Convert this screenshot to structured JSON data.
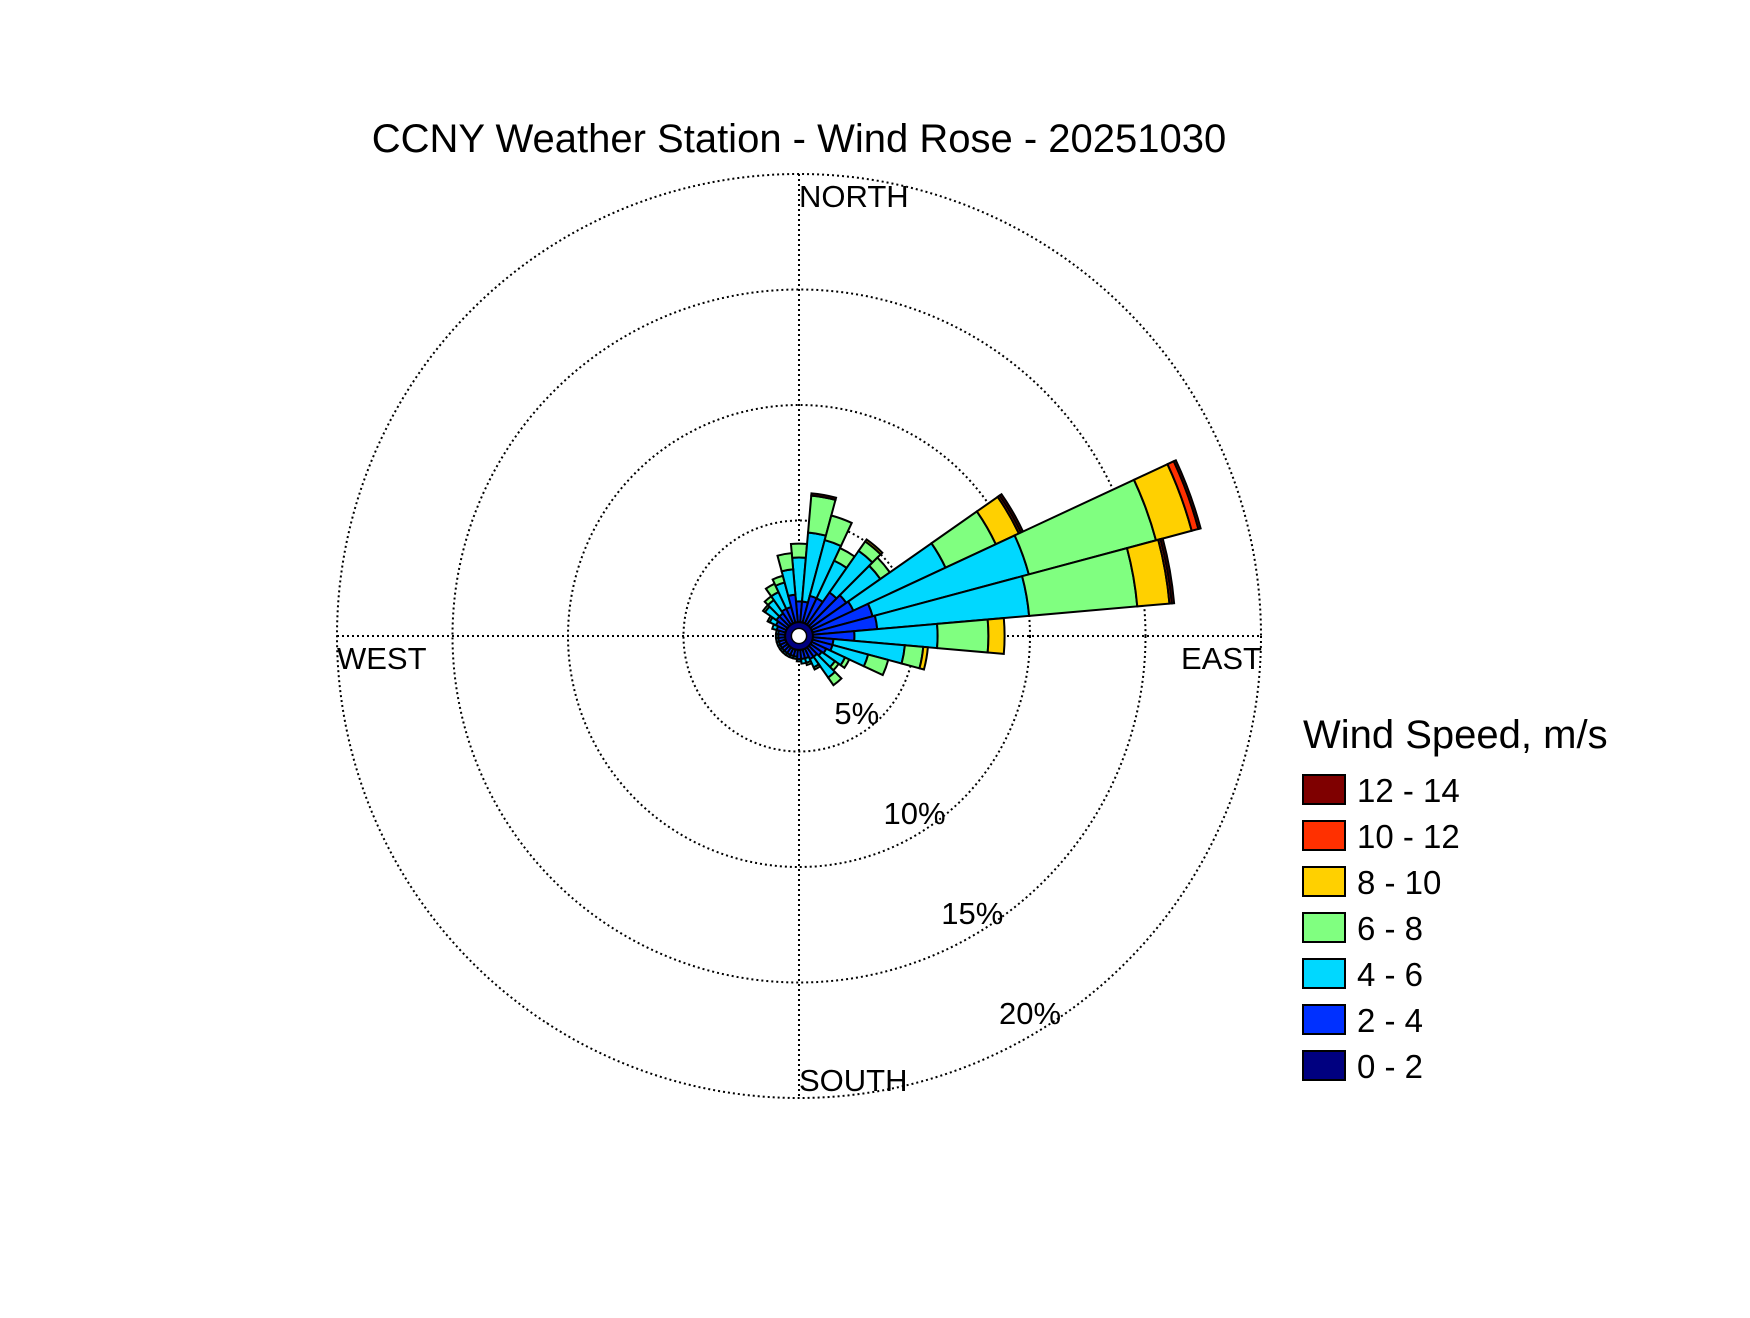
{
  "chart_data": {
    "type": "windrose",
    "title": "CCNY Weather Station - Wind Rose - 20251030",
    "directions": {
      "north": "NORTH",
      "east": "EAST",
      "south": "SOUTH",
      "west": "WEST"
    },
    "radial_axis": {
      "max": 20,
      "ticks": [
        5,
        10,
        15,
        20
      ],
      "tick_labels": [
        "5%",
        "10%",
        "15%",
        "20%"
      ],
      "label_angle_deg": 150
    },
    "grid": true,
    "legend": {
      "title": "Wind Speed, m/s",
      "position": "right",
      "entries": [
        {
          "label": "12 - 14",
          "color": "#7f0000"
        },
        {
          "label": "10 - 12",
          "color": "#ff3000"
        },
        {
          "label": "8 - 10",
          "color": "#ffd000"
        },
        {
          "label": "6 - 8",
          "color": "#80ff80"
        },
        {
          "label": "4 - 6",
          "color": "#00d8ff"
        },
        {
          "label": "2 - 4",
          "color": "#0030ff"
        },
        {
          "label": "0 - 2",
          "color": "#000080"
        }
      ]
    },
    "bins": [
      "0 - 2",
      "2 - 4",
      "4 - 6",
      "6 - 8",
      "8 - 10",
      "10 - 12",
      "12 - 14"
    ],
    "center_calm_radius": 0.6,
    "sector_width_deg": 10,
    "sectors": [
      {
        "direction_deg": 0,
        "cumulative": [
          0.6,
          1.5,
          3.4,
          4.0,
          4.0,
          4.0,
          4.0
        ]
      },
      {
        "direction_deg": 10,
        "cumulative": [
          0.6,
          1.5,
          4.5,
          6.1,
          6.1,
          6.1,
          6.2
        ]
      },
      {
        "direction_deg": 20,
        "cumulative": [
          0.6,
          1.8,
          4.3,
          5.4,
          5.4,
          5.4,
          5.4
        ]
      },
      {
        "direction_deg": 30,
        "cumulative": [
          0.6,
          1.8,
          3.6,
          4.2,
          4.2,
          4.2,
          4.2
        ]
      },
      {
        "direction_deg": 40,
        "cumulative": [
          0.6,
          2.3,
          4.5,
          5.0,
          5.1,
          5.1,
          5.1
        ]
      },
      {
        "direction_deg": 50,
        "cumulative": [
          0.6,
          2.5,
          4.3,
          4.8,
          4.8,
          4.8,
          4.8
        ]
      },
      {
        "direction_deg": 60,
        "cumulative": [
          0.6,
          2.6,
          7.0,
          9.4,
          10.5,
          10.6,
          10.7
        ]
      },
      {
        "direction_deg": 70,
        "cumulative": [
          0.6,
          3.3,
          10.3,
          16.0,
          17.6,
          17.9,
          18.0
        ]
      },
      {
        "direction_deg": 80,
        "cumulative": [
          0.6,
          3.4,
          10.0,
          14.7,
          16.1,
          16.2,
          16.3
        ]
      },
      {
        "direction_deg": 90,
        "cumulative": [
          0.6,
          2.4,
          6.0,
          8.2,
          8.9,
          8.9,
          8.9
        ]
      },
      {
        "direction_deg": 100,
        "cumulative": [
          0.6,
          1.5,
          4.6,
          5.4,
          5.6,
          5.6,
          5.6
        ]
      },
      {
        "direction_deg": 110,
        "cumulative": [
          0.6,
          1.5,
          3.1,
          4.0,
          4.0,
          4.0,
          4.0
        ]
      },
      {
        "direction_deg": 120,
        "cumulative": [
          0.6,
          1.3,
          2.2,
          2.4,
          2.4,
          2.4,
          2.4
        ]
      },
      {
        "direction_deg": 130,
        "cumulative": [
          0.6,
          1.2,
          1.9,
          2.1,
          2.1,
          2.1,
          2.1
        ]
      },
      {
        "direction_deg": 140,
        "cumulative": [
          0.6,
          1.1,
          2.2,
          2.6,
          2.6,
          2.6,
          2.6
        ]
      },
      {
        "direction_deg": 150,
        "cumulative": [
          0.6,
          1.1,
          1.5,
          1.6,
          1.6,
          1.6,
          1.6
        ]
      },
      {
        "direction_deg": 160,
        "cumulative": [
          0.6,
          1.0,
          1.2,
          1.3,
          1.3,
          1.3,
          1.3
        ]
      },
      {
        "direction_deg": 170,
        "cumulative": [
          0.6,
          1.0,
          1.2,
          1.2,
          1.2,
          1.2,
          1.2
        ]
      },
      {
        "direction_deg": 180,
        "cumulative": [
          0.6,
          1.0,
          1.1,
          1.1,
          1.1,
          1.1,
          1.1
        ]
      },
      {
        "direction_deg": 190,
        "cumulative": [
          0.6,
          0.9,
          1.0,
          1.0,
          1.0,
          1.0,
          1.0
        ]
      },
      {
        "direction_deg": 200,
        "cumulative": [
          0.6,
          0.9,
          1.0,
          1.0,
          1.0,
          1.0,
          1.0
        ]
      },
      {
        "direction_deg": 210,
        "cumulative": [
          0.6,
          0.9,
          1.0,
          1.0,
          1.0,
          1.0,
          1.0
        ]
      },
      {
        "direction_deg": 220,
        "cumulative": [
          0.6,
          0.9,
          1.0,
          1.0,
          1.0,
          1.0,
          1.0
        ]
      },
      {
        "direction_deg": 230,
        "cumulative": [
          0.6,
          0.9,
          1.0,
          1.0,
          1.0,
          1.0,
          1.0
        ]
      },
      {
        "direction_deg": 240,
        "cumulative": [
          0.6,
          0.9,
          1.0,
          1.0,
          1.0,
          1.0,
          1.0
        ]
      },
      {
        "direction_deg": 250,
        "cumulative": [
          0.6,
          0.9,
          1.0,
          1.0,
          1.0,
          1.0,
          1.0
        ]
      },
      {
        "direction_deg": 260,
        "cumulative": [
          0.6,
          0.9,
          1.0,
          1.0,
          1.0,
          1.0,
          1.0
        ]
      },
      {
        "direction_deg": 270,
        "cumulative": [
          0.6,
          0.9,
          1.0,
          1.0,
          1.0,
          1.0,
          1.0
        ]
      },
      {
        "direction_deg": 280,
        "cumulative": [
          0.6,
          0.9,
          1.0,
          1.0,
          1.0,
          1.0,
          1.0
        ]
      },
      {
        "direction_deg": 290,
        "cumulative": [
          0.6,
          1.0,
          1.2,
          1.2,
          1.2,
          1.2,
          1.2
        ]
      },
      {
        "direction_deg": 300,
        "cumulative": [
          0.6,
          1.1,
          1.4,
          1.5,
          1.5,
          1.5,
          1.5
        ]
      },
      {
        "direction_deg": 310,
        "cumulative": [
          0.6,
          1.2,
          1.8,
          1.9,
          1.9,
          1.9,
          1.9
        ]
      },
      {
        "direction_deg": 320,
        "cumulative": [
          0.6,
          1.2,
          1.9,
          2.1,
          2.1,
          2.1,
          2.1
        ]
      },
      {
        "direction_deg": 330,
        "cumulative": [
          0.6,
          1.3,
          2.1,
          2.5,
          2.5,
          2.5,
          2.5
        ]
      },
      {
        "direction_deg": 340,
        "cumulative": [
          0.6,
          1.3,
          2.4,
          2.7,
          2.7,
          2.7,
          2.7
        ]
      },
      {
        "direction_deg": 350,
        "cumulative": [
          0.6,
          1.8,
          2.9,
          3.6,
          3.6,
          3.6,
          3.6
        ]
      }
    ]
  }
}
